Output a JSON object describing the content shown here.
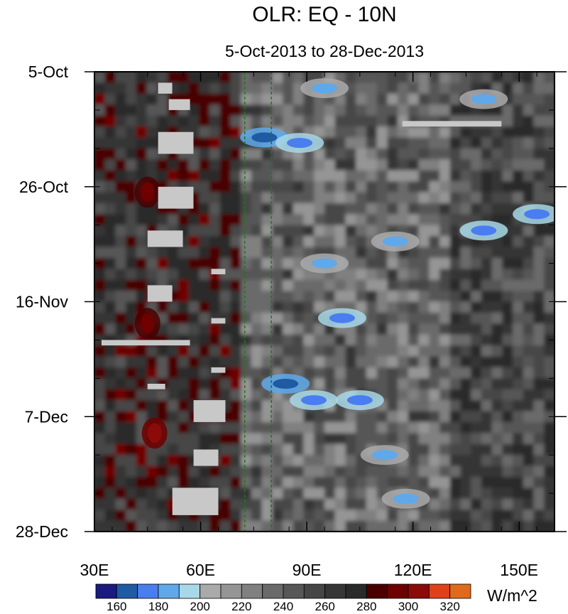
{
  "chart_data": {
    "type": "heatmap",
    "title": "OLR: EQ - 10N",
    "subtitle": "5-Oct-2013 to 28-Dec-2013",
    "x_ticks": [
      {
        "value": 30,
        "label": "30E"
      },
      {
        "value": 60,
        "label": "60E"
      },
      {
        "value": 90,
        "label": "90E"
      },
      {
        "value": 120,
        "label": "120E"
      },
      {
        "value": 150,
        "label": "150E"
      }
    ],
    "xlim": [
      30,
      160
    ],
    "y_ticks": [
      {
        "value": "2013-10-05",
        "label": "5-Oct"
      },
      {
        "value": "2013-10-26",
        "label": "26-Oct"
      },
      {
        "value": "2013-11-16",
        "label": "16-Nov"
      },
      {
        "value": "2013-12-07",
        "label": "7-Dec"
      },
      {
        "value": "2013-12-28",
        "label": "28-Dec"
      }
    ],
    "ylim": [
      "2013-10-05",
      "2013-12-28"
    ],
    "y_direction": "top-to-bottom",
    "reference_lines_x": [
      72.5,
      80
    ],
    "colorbar": {
      "unit": "W/m^2",
      "levels": [
        160,
        170,
        180,
        190,
        200,
        210,
        220,
        230,
        240,
        250,
        260,
        270,
        280,
        290,
        300,
        310,
        320
      ],
      "labels": [
        "160",
        "180",
        "200",
        "220",
        "240",
        "260",
        "280",
        "300",
        "320"
      ],
      "colors": [
        "#1a1a80",
        "#1f5aa5",
        "#4a7df0",
        "#5fa8ea",
        "#a8d8e8",
        "#aaaaaa",
        "#959595",
        "#808080",
        "#6a6a6a",
        "#575757",
        "#464646",
        "#363636",
        "#2a2a2a",
        "#4a0000",
        "#6e0000",
        "#8c0a0a",
        "#e0401a",
        "#e06a1a"
      ]
    },
    "features": [
      {
        "kind": "low_olr",
        "lon": 95,
        "date": "2013-10-08",
        "value": 180
      },
      {
        "kind": "low_olr",
        "lon": 140,
        "date": "2013-10-10",
        "value": 185
      },
      {
        "kind": "low_olr",
        "lon": 78,
        "date": "2013-10-17",
        "value": 165
      },
      {
        "kind": "low_olr",
        "lon": 88,
        "date": "2013-10-18",
        "value": 175
      },
      {
        "kind": "low_olr",
        "lon": 140,
        "date": "2013-11-03",
        "value": 175
      },
      {
        "kind": "low_olr",
        "lon": 155,
        "date": "2013-10-31",
        "value": 175
      },
      {
        "kind": "low_olr",
        "lon": 115,
        "date": "2013-11-05",
        "value": 185
      },
      {
        "kind": "low_olr",
        "lon": 95,
        "date": "2013-11-09",
        "value": 185
      },
      {
        "kind": "low_olr",
        "lon": 100,
        "date": "2013-11-19",
        "value": 170
      },
      {
        "kind": "low_olr",
        "lon": 84,
        "date": "2013-12-01",
        "value": 160
      },
      {
        "kind": "low_olr",
        "lon": 92,
        "date": "2013-12-04",
        "value": 175
      },
      {
        "kind": "low_olr",
        "lon": 105,
        "date": "2013-12-04",
        "value": 175
      },
      {
        "kind": "low_olr",
        "lon": 112,
        "date": "2013-12-14",
        "value": 180
      },
      {
        "kind": "low_olr",
        "lon": 118,
        "date": "2013-12-22",
        "value": 180
      },
      {
        "kind": "high_olr",
        "lon": 47,
        "date": "2013-12-10",
        "value": 300
      },
      {
        "kind": "high_olr",
        "lon": 45,
        "date": "2013-11-20",
        "value": 295
      },
      {
        "kind": "high_olr",
        "lon": 45,
        "date": "2013-10-27",
        "value": 295
      }
    ],
    "missing_data": [
      {
        "lon": [
          48,
          52
        ],
        "date": [
          "2013-10-07",
          "2013-10-09"
        ]
      },
      {
        "lon": [
          51,
          57
        ],
        "date": [
          "2013-10-10",
          "2013-10-12"
        ]
      },
      {
        "lon": [
          48,
          58
        ],
        "date": [
          "2013-10-16",
          "2013-10-20"
        ]
      },
      {
        "lon": [
          48,
          58
        ],
        "date": [
          "2013-10-26",
          "2013-10-30"
        ]
      },
      {
        "lon": [
          45,
          55
        ],
        "date": [
          "2013-11-03",
          "2013-11-06"
        ]
      },
      {
        "lon": [
          63,
          67
        ],
        "date": [
          "2013-11-10",
          "2013-11-11"
        ]
      },
      {
        "lon": [
          45,
          52
        ],
        "date": [
          "2013-11-13",
          "2013-11-16"
        ]
      },
      {
        "lon": [
          32,
          57
        ],
        "date": [
          "2013-11-23",
          "2013-11-24"
        ]
      },
      {
        "lon": [
          63,
          67
        ],
        "date": [
          "2013-11-19",
          "2013-11-20"
        ]
      },
      {
        "lon": [
          63,
          67
        ],
        "date": [
          "2013-11-28",
          "2013-11-29"
        ]
      },
      {
        "lon": [
          45,
          50
        ],
        "date": [
          "2013-12-01",
          "2013-12-02"
        ]
      },
      {
        "lon": [
          58,
          67
        ],
        "date": [
          "2013-12-04",
          "2013-12-08"
        ]
      },
      {
        "lon": [
          58,
          65
        ],
        "date": [
          "2013-12-13",
          "2013-12-16"
        ]
      },
      {
        "lon": [
          52,
          65
        ],
        "date": [
          "2013-12-20",
          "2013-12-25"
        ]
      },
      {
        "lon": [
          117,
          145
        ],
        "date": [
          "2013-10-14",
          "2013-10-15"
        ]
      }
    ]
  }
}
